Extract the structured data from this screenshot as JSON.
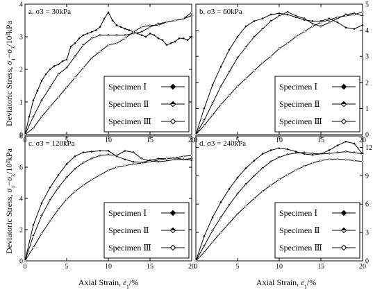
{
  "chart_data": {
    "type": "line",
    "xlabel": "Axial Strain, ε1/%",
    "ylabel": "Deviatoric Stress, σ1−σ3/10²kPa",
    "legend_placement": "lower-right",
    "grid": false,
    "legend": [
      "Specimen Ⅰ",
      "Specimen Ⅱ",
      "Specimen Ⅲ"
    ],
    "panels": [
      {
        "label": "a. σ3 = 30kPa",
        "xlim": [
          0,
          20
        ],
        "ylim": [
          0,
          4
        ],
        "xticks": [
          0,
          5,
          10,
          15,
          20
        ],
        "yticks": [
          0,
          1,
          2,
          3,
          4
        ],
        "yaxis_side": "left",
        "series": [
          {
            "name": "Specimen Ⅰ",
            "x": [
              0,
              0.5,
              1,
              1.5,
              2,
              2.5,
              3,
              3.5,
              4,
              4.5,
              5,
              5.5,
              6,
              6.5,
              7,
              7.5,
              8,
              8.5,
              9,
              9.5,
              10,
              10.5,
              11,
              11.5,
              12,
              12.5,
              13,
              13.5,
              14,
              14.5,
              15,
              15.5,
              16,
              16.5,
              17,
              17.5,
              18,
              18.5,
              19,
              19.5,
              20
            ],
            "y": [
              0,
              0.55,
              1.05,
              1.35,
              1.65,
              1.85,
              2.0,
              2.1,
              2.15,
              2.25,
              2.3,
              2.7,
              2.8,
              2.95,
              3.05,
              3.1,
              3.15,
              3.2,
              3.3,
              3.55,
              3.75,
              3.5,
              3.35,
              3.3,
              3.25,
              3.2,
              3.15,
              3.1,
              3.05,
              3.0,
              3.1,
              3.05,
              2.95,
              2.9,
              2.75,
              2.8,
              2.85,
              2.95,
              2.95,
              2.9,
              3.0
            ]
          },
          {
            "name": "Specimen Ⅱ",
            "x": [
              0,
              1,
              2,
              3,
              4,
              5,
              6,
              7,
              8,
              9,
              10,
              11,
              12,
              13,
              14,
              15,
              16,
              17,
              18,
              19,
              20
            ],
            "y": [
              0,
              0.55,
              1.05,
              1.45,
              1.85,
              2.05,
              2.4,
              2.75,
              2.95,
              3.05,
              3.05,
              3.05,
              3.05,
              3.1,
              3.15,
              3.3,
              3.4,
              3.45,
              3.5,
              3.55,
              3.65
            ]
          },
          {
            "name": "Specimen Ⅲ",
            "x": [
              0,
              1,
              2,
              3,
              4,
              5,
              6,
              7,
              8,
              9,
              10,
              11,
              12,
              13,
              14,
              15,
              16,
              17,
              18,
              19,
              20
            ],
            "y": [
              0,
              0.2,
              0.55,
              0.85,
              1.15,
              1.45,
              1.75,
              2.05,
              2.35,
              2.55,
              2.75,
              2.8,
              2.95,
              3.15,
              3.3,
              3.35,
              3.35,
              3.45,
              3.5,
              3.55,
              3.75
            ]
          }
        ]
      },
      {
        "label": "b. σ3 = 60kPa",
        "xlim": [
          0,
          20
        ],
        "ylim": [
          0,
          5
        ],
        "xticks": [
          0,
          5,
          10,
          15,
          20
        ],
        "yticks": [
          0,
          1,
          2,
          3,
          4,
          5
        ],
        "yaxis_side": "right",
        "series": [
          {
            "name": "Specimen Ⅰ",
            "x": [
              0,
              1,
              2,
              3,
              4,
              5,
              6,
              7,
              8,
              9,
              10,
              11,
              12,
              13,
              14,
              15,
              16,
              17,
              18,
              19,
              20
            ],
            "y": [
              0,
              1.0,
              1.9,
              2.6,
              3.25,
              3.75,
              4.15,
              4.35,
              4.45,
              4.6,
              4.65,
              4.6,
              4.5,
              4.4,
              4.35,
              4.35,
              4.45,
              4.3,
              4.1,
              4.05,
              4.2
            ]
          },
          {
            "name": "Specimen Ⅱ",
            "x": [
              0,
              1,
              2,
              3,
              4,
              5,
              6,
              7,
              8,
              9,
              10,
              11,
              12,
              13,
              14,
              15,
              16,
              17,
              18,
              19,
              20
            ],
            "y": [
              0,
              0.55,
              1.2,
              1.85,
              2.4,
              2.95,
              3.35,
              3.75,
              4.05,
              4.35,
              4.55,
              4.7,
              4.55,
              4.45,
              4.25,
              4.15,
              4.3,
              4.45,
              4.6,
              4.65,
              4.55
            ]
          },
          {
            "name": "Specimen Ⅲ",
            "x": [
              0,
              1,
              2,
              3,
              4,
              5,
              6,
              7,
              8,
              9,
              10,
              11,
              12,
              13,
              14,
              15,
              16,
              17,
              18,
              19,
              20
            ],
            "y": [
              0,
              0.35,
              0.75,
              1.15,
              1.5,
              1.85,
              2.15,
              2.45,
              2.75,
              3.0,
              3.3,
              3.5,
              3.75,
              3.95,
              4.15,
              4.3,
              4.4,
              4.5,
              4.55,
              4.6,
              4.7
            ]
          }
        ]
      },
      {
        "label": "c. σ3 = 120kPa",
        "xlim": [
          0,
          20
        ],
        "ylim": [
          0,
          8
        ],
        "xticks": [
          0,
          5,
          10,
          15,
          20
        ],
        "yticks": [
          0,
          2,
          4,
          6,
          8
        ],
        "yaxis_side": "left",
        "series": [
          {
            "name": "Specimen Ⅰ",
            "x": [
              0,
              1,
              2,
              3,
              4,
              5,
              6,
              7,
              8,
              9,
              10,
              11,
              12,
              13,
              14,
              15,
              16,
              17,
              18,
              19,
              20
            ],
            "y": [
              0,
              2.3,
              3.7,
              4.7,
              5.5,
              6.2,
              6.7,
              6.95,
              7.0,
              7.05,
              7.05,
              6.7,
              6.5,
              6.35,
              6.3,
              6.45,
              6.55,
              6.55,
              6.6,
              6.5,
              6.45
            ]
          },
          {
            "name": "Specimen Ⅱ",
            "x": [
              0,
              1,
              2,
              3,
              4,
              5,
              6,
              7,
              8,
              9,
              10,
              11,
              12,
              13,
              14,
              15,
              16,
              17,
              18,
              19,
              20
            ],
            "y": [
              0,
              1.6,
              2.9,
              3.9,
              4.7,
              5.35,
              5.9,
              6.3,
              6.55,
              6.75,
              6.8,
              6.75,
              7.05,
              6.95,
              6.55,
              6.4,
              6.35,
              6.4,
              6.5,
              6.5,
              6.55
            ]
          },
          {
            "name": "Specimen Ⅲ",
            "x": [
              0,
              1,
              2,
              3,
              4,
              5,
              6,
              7,
              8,
              9,
              10,
              11,
              12,
              13,
              14,
              15,
              16,
              17,
              18,
              19,
              20
            ],
            "y": [
              0,
              0.85,
              1.75,
              2.55,
              3.3,
              3.95,
              4.45,
              4.85,
              5.2,
              5.5,
              5.8,
              6.0,
              6.1,
              6.2,
              6.25,
              6.35,
              6.45,
              6.55,
              6.6,
              6.7,
              6.75
            ]
          }
        ]
      },
      {
        "label": "d. σ3 = 240kPa",
        "xlim": [
          0,
          20
        ],
        "ylim": [
          0,
          13.2
        ],
        "xticks": [
          0,
          5,
          10,
          15,
          20
        ],
        "yticks": [
          0,
          3,
          6,
          9,
          12
        ],
        "yaxis_side": "right",
        "series": [
          {
            "name": "Specimen Ⅰ",
            "x": [
              0,
              1,
              2,
              3,
              4,
              5,
              6,
              7,
              8,
              9,
              10,
              11,
              12,
              13,
              14,
              15,
              16,
              17,
              18,
              19,
              20
            ],
            "y": [
              0,
              2.6,
              4.6,
              6.2,
              7.6,
              8.8,
              9.8,
              10.6,
              11.3,
              11.7,
              11.9,
              11.8,
              11.55,
              11.3,
              11.2,
              11.3,
              11.7,
              12.2,
              12.6,
              12.4,
              11.3
            ]
          },
          {
            "name": "Specimen Ⅱ",
            "x": [
              0,
              1,
              2,
              3,
              4,
              5,
              6,
              7,
              8,
              9,
              10,
              11,
              12,
              13,
              14,
              15,
              16,
              17,
              18,
              19,
              20
            ],
            "y": [
              0,
              1.6,
              3.2,
              4.6,
              5.9,
              7.1,
              8.1,
              9.0,
              9.8,
              10.5,
              10.95,
              11.25,
              11.4,
              11.45,
              11.35,
              11.3,
              11.35,
              11.45,
              11.55,
              11.45,
              11.3
            ]
          },
          {
            "name": "Specimen Ⅲ",
            "x": [
              0,
              1,
              2,
              3,
              4,
              5,
              6,
              7,
              8,
              9,
              10,
              11,
              12,
              13,
              14,
              15,
              16,
              17,
              18,
              19,
              20
            ],
            "y": [
              0,
              0.9,
              2.0,
              3.0,
              4.0,
              4.95,
              5.8,
              6.6,
              7.35,
              8.0,
              8.6,
              9.1,
              9.6,
              10.0,
              10.35,
              10.6,
              10.75,
              10.75,
              10.7,
              10.6,
              10.5
            ]
          }
        ]
      }
    ]
  }
}
